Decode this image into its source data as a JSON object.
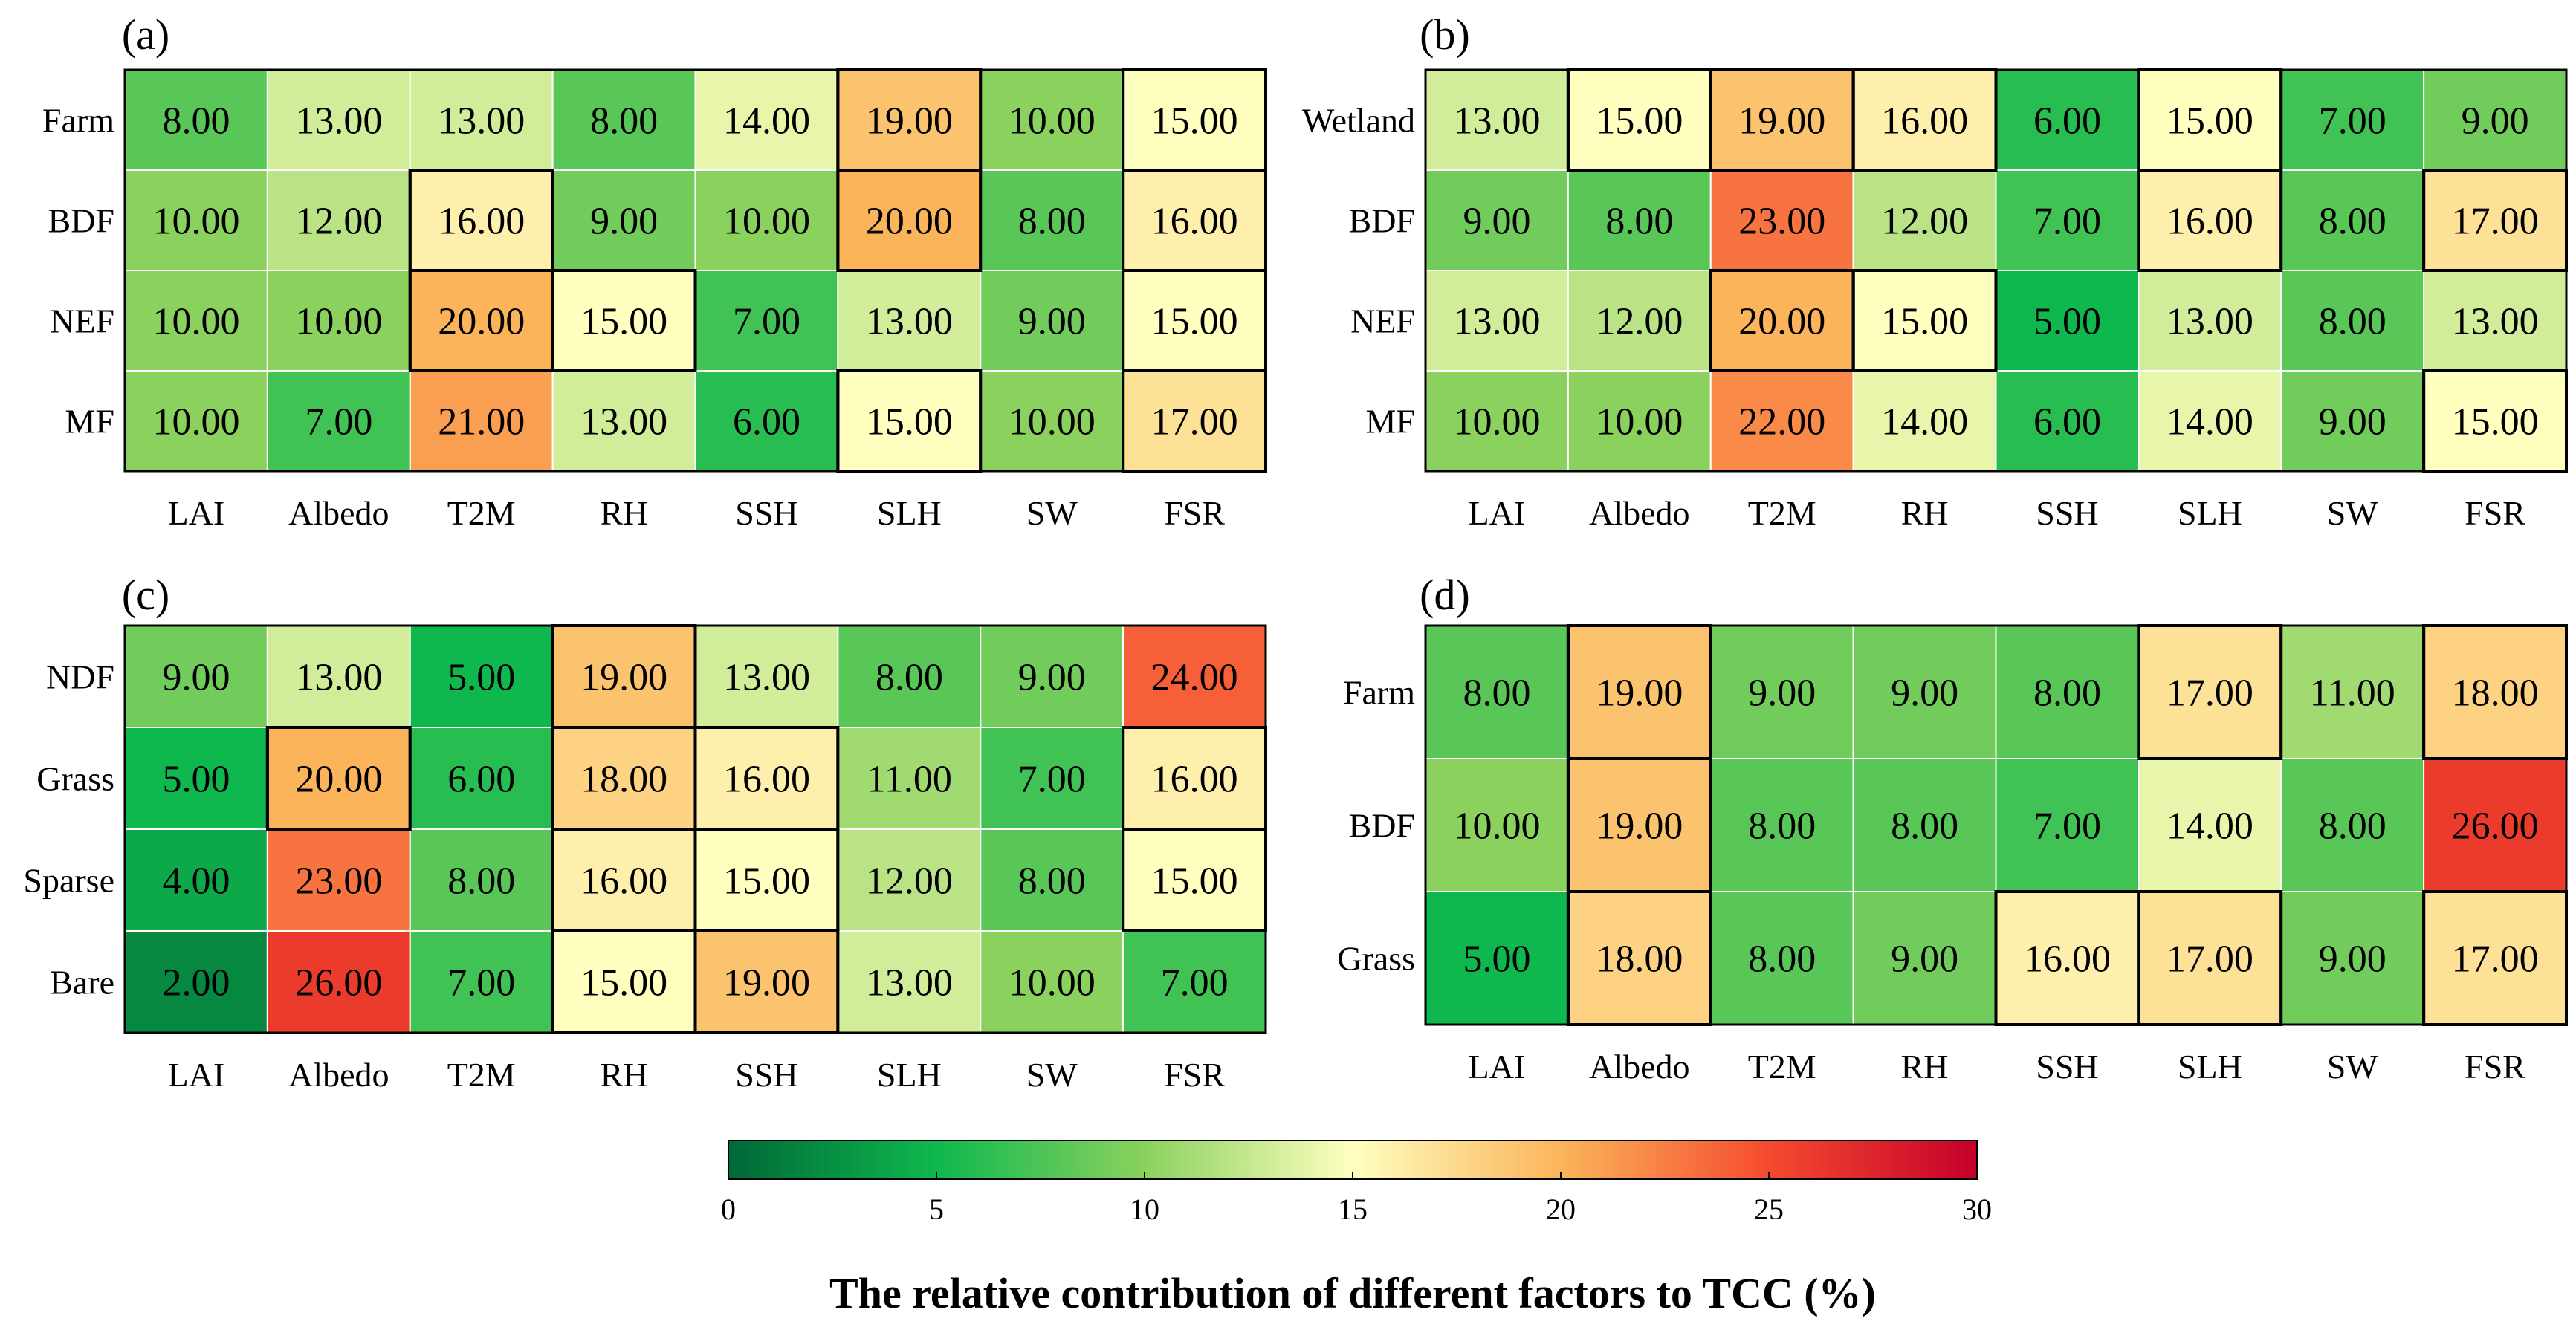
{
  "chart_data": [
    {
      "type": "heatmap",
      "panel": "(a)",
      "rows": [
        "Farm",
        "BDF",
        "NEF",
        "MF"
      ],
      "columns": [
        "LAI",
        "Albedo",
        "T2M",
        "RH",
        "SSH",
        "SLH",
        "SW",
        "FSR"
      ],
      "values": [
        [
          8,
          13,
          13,
          8,
          14,
          19,
          10,
          15
        ],
        [
          10,
          12,
          16,
          9,
          10,
          20,
          8,
          16
        ],
        [
          10,
          10,
          20,
          15,
          7,
          13,
          9,
          15
        ],
        [
          10,
          7,
          21,
          13,
          6,
          15,
          10,
          17
        ]
      ],
      "labels": [
        [
          "8.00",
          "13.00",
          "13.00",
          "8.00",
          "14.00",
          "19.00",
          "10.00",
          "15.00"
        ],
        [
          "10.00",
          "12.00",
          "16.00",
          "9.00",
          "10.00",
          "20.00",
          "8.00",
          "16.00"
        ],
        [
          "10.00",
          "10.00",
          "20.00",
          "15.00",
          "7.00",
          "13.00",
          "9.00",
          "15.00"
        ],
        [
          "10.00",
          "7.00",
          "21.00",
          "13.00",
          "6.00",
          "15.00",
          "10.00",
          "17.00"
        ]
      ]
    },
    {
      "type": "heatmap",
      "panel": "(b)",
      "rows": [
        "Wetland",
        "BDF",
        "NEF",
        "MF"
      ],
      "columns": [
        "LAI",
        "Albedo",
        "T2M",
        "RH",
        "SSH",
        "SLH",
        "SW",
        "FSR"
      ],
      "values": [
        [
          13,
          15,
          19,
          16,
          6,
          15,
          7,
          9
        ],
        [
          9,
          8,
          23,
          12,
          7,
          16,
          8,
          17
        ],
        [
          13,
          12,
          20,
          15,
          5,
          13,
          8,
          13
        ],
        [
          10,
          10,
          22,
          14,
          6,
          14,
          9,
          15
        ]
      ],
      "labels": [
        [
          "13.00",
          "15.00",
          "19.00",
          "16.00",
          "6.00",
          "15.00",
          "7.00",
          "9.00"
        ],
        [
          "9.00",
          "8.00",
          "23.00",
          "12.00",
          "7.00",
          "16.00",
          "8.00",
          "17.00"
        ],
        [
          "13.00",
          "12.00",
          "20.00",
          "15.00",
          "5.00",
          "13.00",
          "8.00",
          "13.00"
        ],
        [
          "10.00",
          "10.00",
          "22.00",
          "14.00",
          "6.00",
          "14.00",
          "9.00",
          "15.00"
        ]
      ]
    },
    {
      "type": "heatmap",
      "panel": "(c)",
      "rows": [
        "NDF",
        "Grass",
        "Sparse",
        "Bare"
      ],
      "columns": [
        "LAI",
        "Albedo",
        "T2M",
        "RH",
        "SSH",
        "SLH",
        "SW",
        "FSR"
      ],
      "values": [
        [
          9,
          13,
          5,
          19,
          13,
          8,
          9,
          24
        ],
        [
          5,
          20,
          6,
          18,
          16,
          11,
          7,
          16
        ],
        [
          4,
          23,
          8,
          16,
          15,
          12,
          8,
          15
        ],
        [
          2,
          26,
          7,
          15,
          19,
          13,
          10,
          7
        ]
      ],
      "labels": [
        [
          "9.00",
          "13.00",
          "5.00",
          "19.00",
          "13.00",
          "8.00",
          "9.00",
          "24.00"
        ],
        [
          "5.00",
          "20.00",
          "6.00",
          "18.00",
          "16.00",
          "11.00",
          "7.00",
          "16.00"
        ],
        [
          "4.00",
          "23.00",
          "8.00",
          "16.00",
          "15.00",
          "12.00",
          "8.00",
          "15.00"
        ],
        [
          "2.00",
          "26.00",
          "7.00",
          "15.00",
          "19.00",
          "13.00",
          "10.00",
          "7.00"
        ]
      ]
    },
    {
      "type": "heatmap",
      "panel": "(d)",
      "rows": [
        "Farm",
        "BDF",
        "Grass"
      ],
      "columns": [
        "LAI",
        "Albedo",
        "T2M",
        "RH",
        "SSH",
        "SLH",
        "SW",
        "FSR"
      ],
      "values": [
        [
          8,
          19,
          9,
          9,
          8,
          17,
          11,
          18
        ],
        [
          10,
          19,
          8,
          8,
          7,
          14,
          8,
          26
        ],
        [
          5,
          18,
          8,
          9,
          16,
          17,
          9,
          17
        ]
      ],
      "labels": [
        [
          "8.00",
          "19.00",
          "9.00",
          "9.00",
          "8.00",
          "17.00",
          "11.00",
          "18.00"
        ],
        [
          "10.00",
          "19.00",
          "8.00",
          "8.00",
          "7.00",
          "14.00",
          "8.00",
          "26.00"
        ],
        [
          "5.00",
          "18.00",
          "8.00",
          "9.00",
          "16.00",
          "17.00",
          "9.00",
          "17.00"
        ]
      ]
    }
  ],
  "colorbar": {
    "range": [
      0,
      30
    ],
    "ticks": [
      "0",
      "5",
      "10",
      "15",
      "20",
      "25",
      "30"
    ],
    "title": "The relative contribution of different factors to TCC (%)",
    "stops": [
      {
        "value": 0,
        "color": "#006837"
      },
      {
        "value": 5,
        "color": "#0fb84e"
      },
      {
        "value": 10,
        "color": "#8bd15e"
      },
      {
        "value": 15,
        "color": "#ffffc0"
      },
      {
        "value": 20,
        "color": "#fbb45a"
      },
      {
        "value": 25,
        "color": "#f54a2e"
      },
      {
        "value": 30,
        "color": "#c4002a"
      }
    ]
  }
}
